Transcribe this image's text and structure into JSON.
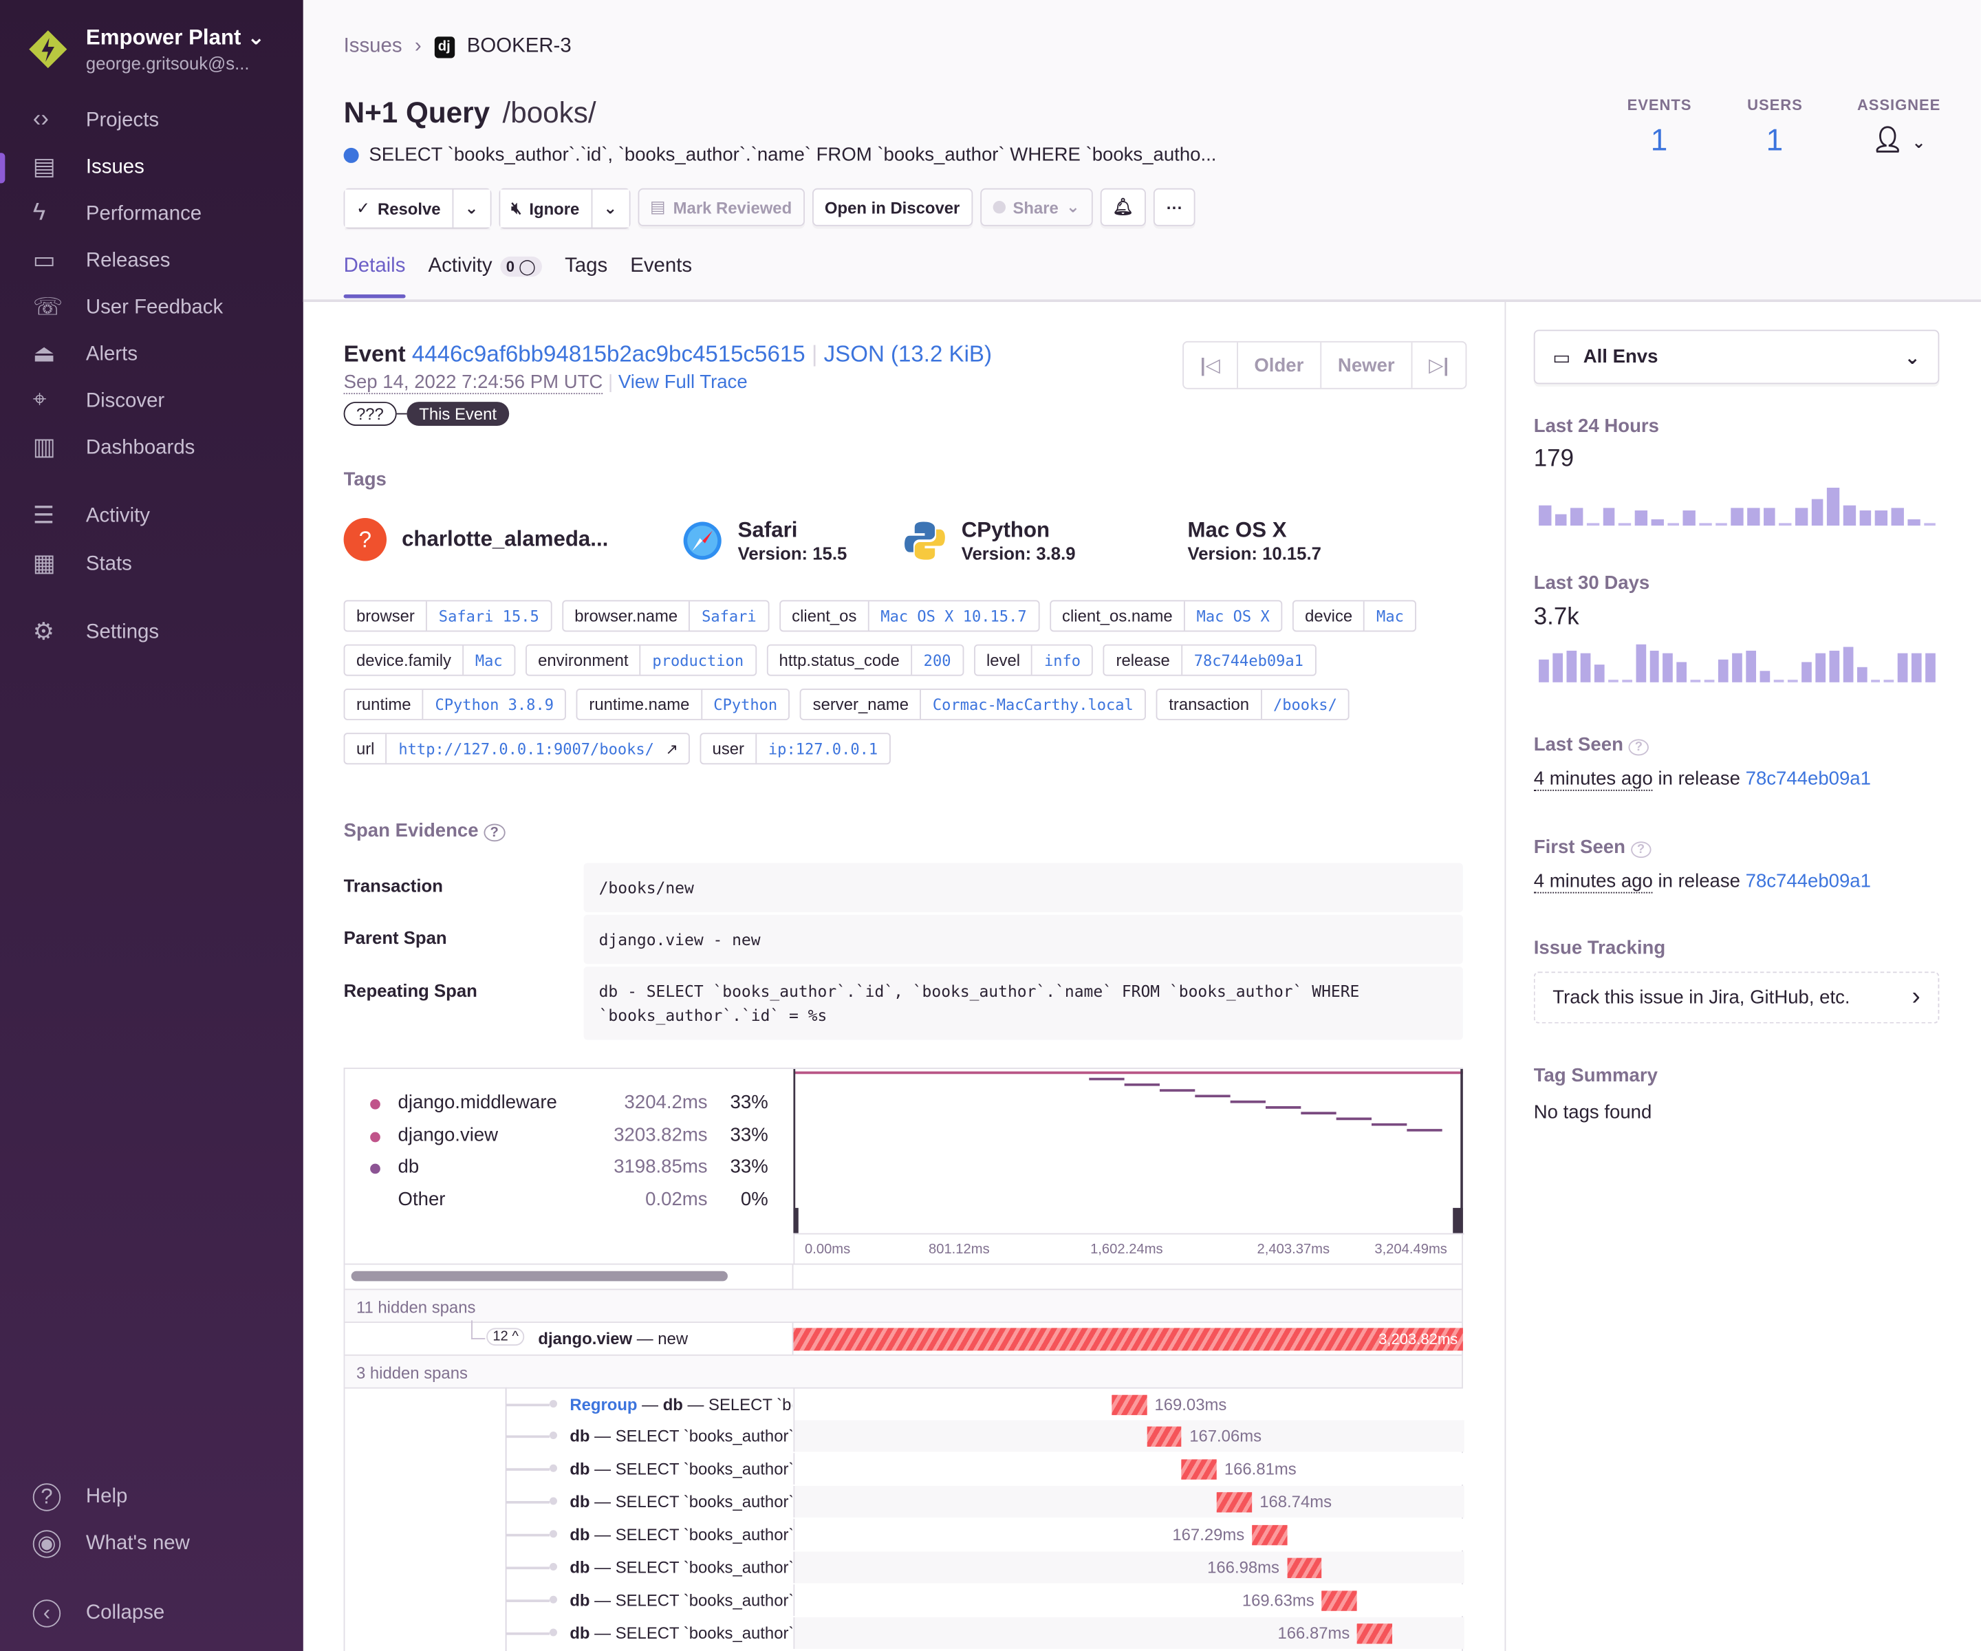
{
  "sidebar": {
    "org_name": "Empower Plant",
    "org_email": "george.gritsouk@s...",
    "items": [
      {
        "label": "Projects",
        "icon": "code-icon"
      },
      {
        "label": "Issues",
        "icon": "issues-icon",
        "active": true
      },
      {
        "label": "Performance",
        "icon": "lightning-icon"
      },
      {
        "label": "Releases",
        "icon": "releases-icon"
      },
      {
        "label": "User Feedback",
        "icon": "feedback-icon"
      },
      {
        "label": "Alerts",
        "icon": "siren-icon"
      },
      {
        "label": "Discover",
        "icon": "telescope-icon"
      },
      {
        "label": "Dashboards",
        "icon": "dashboard-icon"
      },
      {
        "label": "Activity",
        "icon": "list-icon"
      },
      {
        "label": "Stats",
        "icon": "stats-icon"
      },
      {
        "label": "Settings",
        "icon": "gear-icon"
      }
    ],
    "bottom": [
      {
        "label": "Help",
        "icon": "question-icon"
      },
      {
        "label": "What's new",
        "icon": "broadcast-icon"
      },
      {
        "label": "Collapse",
        "icon": "collapse-icon"
      }
    ]
  },
  "header": {
    "breadcrumb": [
      "Issues",
      "BOOKER-3"
    ],
    "platform_badge": "dj",
    "title": "N+1 Query",
    "subtitle": "/books/",
    "message": "SELECT `books_author`.`id`, `books_author`.`name` FROM `books_author` WHERE `books_autho...",
    "buttons": {
      "resolve": "Resolve",
      "ignore": "Ignore",
      "mark_reviewed": "Mark Reviewed",
      "open_discover": "Open in Discover",
      "share": "Share"
    },
    "tabs": [
      {
        "label": "Details",
        "active": true
      },
      {
        "label": "Activity",
        "badge": "0"
      },
      {
        "label": "Tags"
      },
      {
        "label": "Events"
      }
    ],
    "stats": {
      "events_label": "EVENTS",
      "events": "1",
      "users_label": "USERS",
      "users": "1",
      "assignee_label": "ASSIGNEE"
    }
  },
  "event": {
    "label": "Event",
    "id": "4446c9af6bb94815b2ac9bc4515c5615",
    "json": "JSON (13.2 KiB)",
    "date": "Sep 14, 2022 7:24:56 PM UTC",
    "view_trace": "View Full Trace",
    "trace_unknown": "???",
    "this_event": "This Event",
    "pager": {
      "older": "Older",
      "newer": "Newer"
    }
  },
  "tags_title": "Tags",
  "context": [
    {
      "name": "charlotte_alameda...",
      "icon": "user-unknown-icon"
    },
    {
      "name": "Safari",
      "version": "Version: 15.5",
      "icon": "safari-icon"
    },
    {
      "name": "CPython",
      "version": "Version: 3.8.9",
      "icon": "python-icon"
    },
    {
      "name": "Mac OS X",
      "version": "Version: 10.15.7",
      "icon": "apple-icon"
    }
  ],
  "tags": [
    {
      "k": "browser",
      "v": "Safari 15.5"
    },
    {
      "k": "browser.name",
      "v": "Safari"
    },
    {
      "k": "client_os",
      "v": "Mac OS X 10.15.7"
    },
    {
      "k": "client_os.name",
      "v": "Mac OS X"
    },
    {
      "k": "device",
      "v": "Mac"
    },
    {
      "k": "device.family",
      "v": "Mac"
    },
    {
      "k": "environment",
      "v": "production"
    },
    {
      "k": "http.status_code",
      "v": "200"
    },
    {
      "k": "level",
      "v": "info"
    },
    {
      "k": "release",
      "v": "78c744eb09a1"
    },
    {
      "k": "runtime",
      "v": "CPython 3.8.9"
    },
    {
      "k": "runtime.name",
      "v": "CPython"
    },
    {
      "k": "server_name",
      "v": "Cormac-MacCarthy.local"
    },
    {
      "k": "transaction",
      "v": "/books/"
    },
    {
      "k": "url",
      "v": "http://127.0.0.1:9007/books/"
    },
    {
      "k": "user",
      "v": "ip:127.0.0.1"
    }
  ],
  "span_evidence": {
    "title": "Span Evidence",
    "rows": [
      {
        "label": "Transaction",
        "value": "/books/new"
      },
      {
        "label": "Parent Span",
        "value": "django.view - new"
      },
      {
        "label": "Repeating Span",
        "value": "db - SELECT `books_author`.`id`, `books_author`.`name` FROM `books_author` WHERE `books_author`.`id` = %s"
      }
    ]
  },
  "chart_data": {
    "type": "bar",
    "legend": [
      {
        "name": "django.middleware",
        "value": "3204.2ms",
        "pct": "33%",
        "color": "#c0548a"
      },
      {
        "name": "django.view",
        "value": "3203.82ms",
        "pct": "33%",
        "color": "#c0548a"
      },
      {
        "name": "db",
        "value": "3198.85ms",
        "pct": "33%",
        "color": "#8c5494"
      },
      {
        "name": "Other",
        "value": "0.02ms",
        "pct": "0%"
      }
    ],
    "axis_ticks": [
      "0.00ms",
      "801.12ms",
      "1,602.24ms",
      "2,403.37ms",
      "3,204.49ms"
    ],
    "xlim": [
      0,
      3204.49
    ],
    "hidden1": "11 hidden spans",
    "hidden2": "3 hidden spans",
    "parent": {
      "children": "12",
      "op": "django.view",
      "desc": "new",
      "duration": "3,203.82ms",
      "start": 0,
      "dur": 3203.82
    },
    "regroup": "Regroup",
    "spans": [
      {
        "op": "db",
        "desc": "SELECT `books_author`",
        "label": "169.03ms",
        "start": 1517,
        "dur": 169.03
      },
      {
        "op": "db",
        "desc": "SELECT `books_author`",
        "label": "167.06ms",
        "start": 1686,
        "dur": 167.06
      },
      {
        "op": "db",
        "desc": "SELECT `books_author`",
        "label": "166.81ms",
        "start": 1853,
        "dur": 166.81
      },
      {
        "op": "db",
        "desc": "SELECT `books_author`",
        "label": "168.74ms",
        "start": 2020,
        "dur": 168.74
      },
      {
        "op": "db",
        "desc": "SELECT `books_author`",
        "label": "167.29ms",
        "start": 2189,
        "dur": 167.29
      },
      {
        "op": "db",
        "desc": "SELECT `books_author`",
        "label": "166.98ms",
        "start": 2356,
        "dur": 166.98
      },
      {
        "op": "db",
        "desc": "SELECT `books_author`",
        "label": "169.63ms",
        "start": 2523,
        "dur": 169.63
      },
      {
        "op": "db",
        "desc": "SELECT `books_author`",
        "label": "166.87ms",
        "start": 2693,
        "dur": 166.87
      }
    ]
  },
  "right": {
    "env": "All Envs",
    "last24_label": "Last 24 Hours",
    "last24": "179",
    "last24_bars": [
      14,
      8,
      12,
      2,
      12,
      2,
      10,
      4,
      2,
      10,
      2,
      2,
      12,
      12,
      12,
      2,
      12,
      18,
      26,
      14,
      10,
      10,
      12,
      4,
      2
    ],
    "last30_label": "Last 30 Days",
    "last30": "3.7k",
    "last30_bars": [
      16,
      20,
      22,
      20,
      12,
      2,
      2,
      26,
      22,
      20,
      14,
      2,
      2,
      16,
      20,
      22,
      8,
      2,
      2,
      14,
      20,
      22,
      24,
      10,
      2,
      2,
      20,
      20,
      20
    ],
    "last_seen_label": "Last Seen",
    "last_seen": "4 minutes ago",
    "first_seen_label": "First Seen",
    "first_seen": "4 minutes ago",
    "in_release": "in release",
    "release": "78c744eb09a1",
    "issue_tracking_label": "Issue Tracking",
    "track": "Track this issue in Jira, GitHub, etc.",
    "tag_summary_label": "Tag Summary",
    "no_tags": "No tags found"
  }
}
